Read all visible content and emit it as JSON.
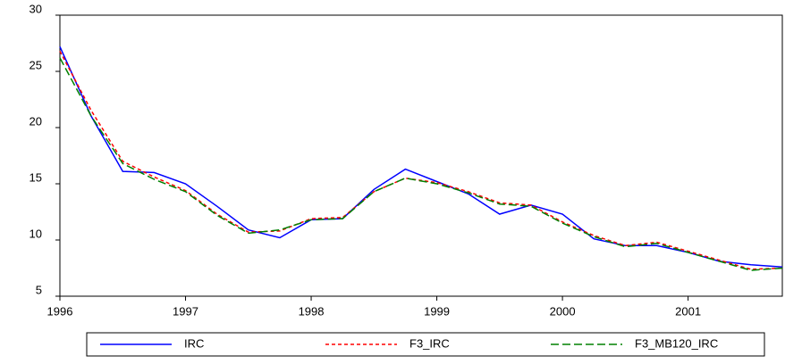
{
  "chart_data": {
    "type": "line",
    "categories": [
      "1996",
      null,
      null,
      null,
      "1997",
      null,
      null,
      null,
      "1998",
      null,
      null,
      null,
      "1999",
      null,
      null,
      null,
      "2000",
      null,
      null,
      null,
      "2001",
      null,
      null,
      null
    ],
    "series": [
      {
        "name": "IRC",
        "color": "#0000ff",
        "line_style": "solid",
        "values": [
          27.2,
          21.0,
          16.1,
          16.0,
          15.0,
          13.0,
          10.9,
          10.2,
          11.8,
          11.9,
          14.5,
          16.3,
          15.2,
          14.1,
          12.3,
          13.1,
          12.3,
          10.1,
          9.5,
          9.5,
          8.9,
          8.1,
          7.8,
          7.6
        ]
      },
      {
        "name": "F3_IRC",
        "color": "#ff0000",
        "line_style": "short-dash",
        "values": [
          26.8,
          21.5,
          17.0,
          15.6,
          14.4,
          12.3,
          10.7,
          10.8,
          11.9,
          12.0,
          14.3,
          15.5,
          15.1,
          14.3,
          13.3,
          13.1,
          11.6,
          10.4,
          9.5,
          9.8,
          9.0,
          8.2,
          7.4,
          7.5
        ]
      },
      {
        "name": "F3_MB120_IRC",
        "color": "#008000",
        "line_style": "long-dash",
        "values": [
          26.2,
          21.0,
          16.8,
          15.4,
          14.3,
          12.2,
          10.6,
          10.9,
          11.8,
          11.9,
          14.3,
          15.5,
          15.0,
          14.2,
          13.2,
          13.0,
          11.5,
          10.3,
          9.4,
          9.7,
          8.9,
          8.1,
          7.3,
          7.5
        ]
      }
    ],
    "ylim": [
      5,
      30
    ],
    "yticks": [
      5,
      10,
      15,
      20,
      25,
      30
    ],
    "grid": false,
    "legend": "bottom"
  }
}
